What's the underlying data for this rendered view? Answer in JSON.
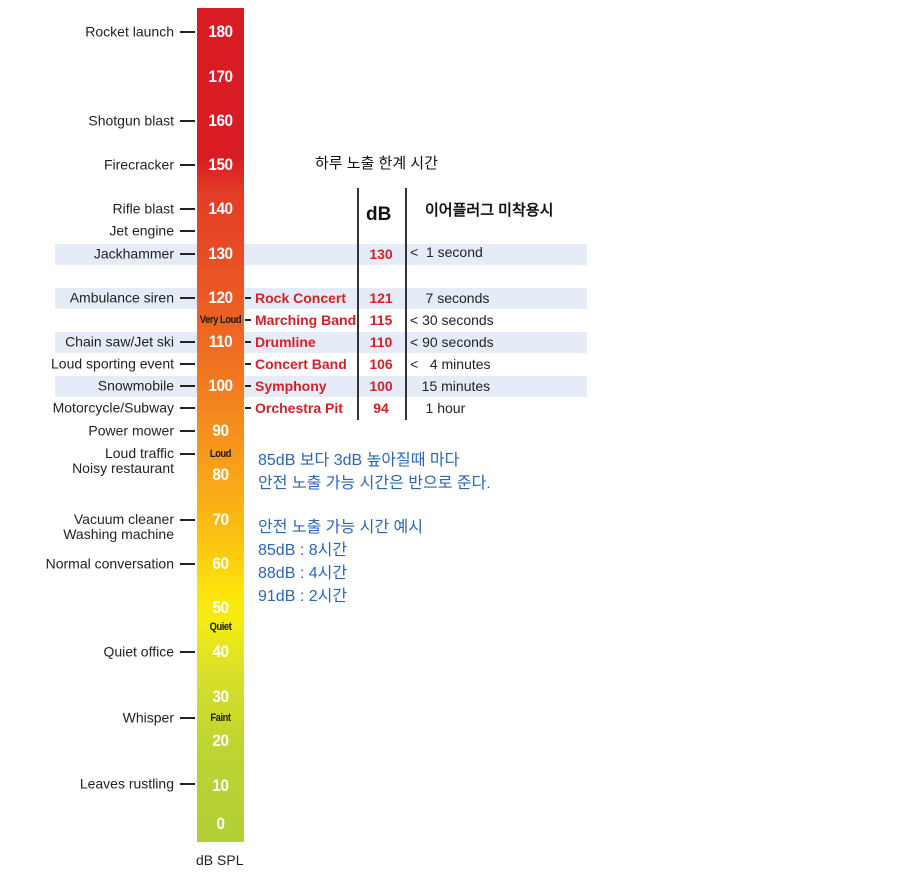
{
  "scale": {
    "numbers": [
      "180",
      "170",
      "160",
      "150",
      "140",
      "130",
      "120",
      "110",
      "100",
      "90",
      "80",
      "70",
      "60",
      "50",
      "40",
      "30",
      "20",
      "10",
      "0"
    ],
    "words": [
      "Very Loud",
      "Loud",
      "Quiet",
      "Faint"
    ],
    "unit": "dB SPL",
    "colors": {
      "top": "#d91c23",
      "mid": "#f7a01c",
      "yellow": "#fde40a",
      "bottom": "#b2cf38"
    }
  },
  "sources": [
    "Rocket launch",
    "Shotgun blast",
    "Firecracker",
    "Rifle blast",
    "Jet engine",
    "Jackhammer",
    "Ambulance siren",
    "Chain saw/Jet ski",
    "Loud sporting event",
    "Snowmobile",
    "Motorcycle/Subway",
    "Power mower",
    "Loud traffic\nNoisy restaurant",
    "Vacuum cleaner\nWashing machine",
    "Normal conversation",
    "Quiet office",
    "Whisper",
    "Leaves rustling"
  ],
  "table": {
    "title": "하루 노출 한계 시간",
    "db_header": "dB",
    "time_header": "이어플러그 미착용시",
    "rows": [
      {
        "event": "",
        "db": "130",
        "time": "<  1 second"
      },
      {
        "event": "Rock Concert",
        "db": "121",
        "time": "    7 seconds"
      },
      {
        "event": "Marching Band",
        "db": "115",
        "time": "< 30 seconds"
      },
      {
        "event": "Drumline",
        "db": "110",
        "time": "< 90 seconds"
      },
      {
        "event": "Concert Band",
        "db": "106",
        "time": "<   4 minutes"
      },
      {
        "event": "Symphony",
        "db": "100",
        "time": "   15 minutes"
      },
      {
        "event": "Orchestra Pit",
        "db": "94",
        "time": "    1 hour"
      }
    ]
  },
  "notes": {
    "rule_line1": "85dB 보다 3dB 높아질때 마다",
    "rule_line2": "안전 노출 가능 시간은 반으로 준다.",
    "examples_title": "안전 노출 가능 시간 예시",
    "examples": [
      "85dB : 8시간",
      "88dB : 4시간",
      "91dB : 2시간"
    ]
  }
}
